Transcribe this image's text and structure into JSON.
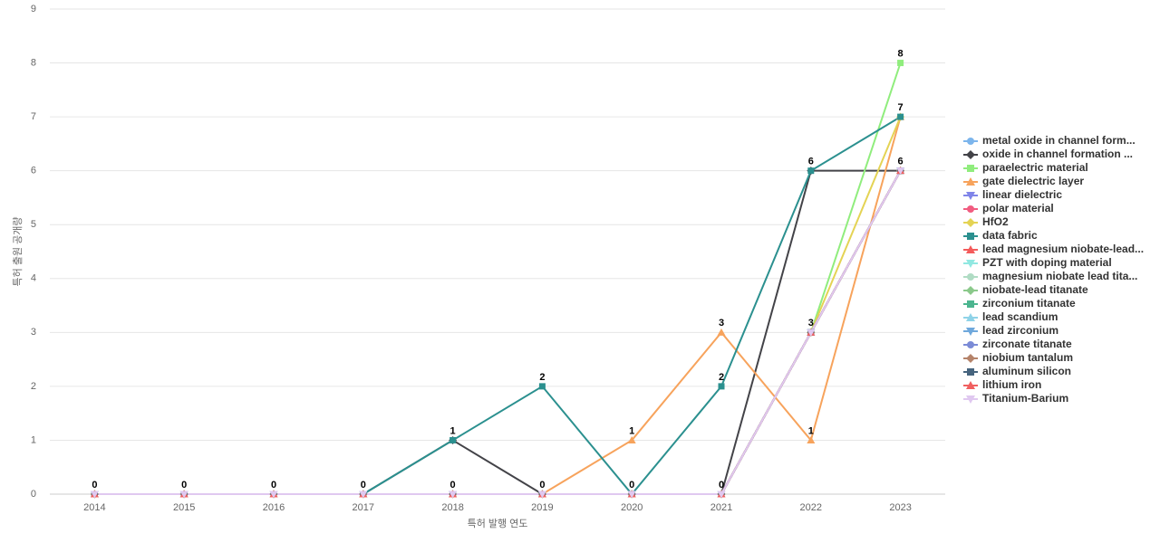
{
  "chart_data": {
    "type": "line",
    "x_label": "특허 발행 연도",
    "y_label": "특허 출원 공개량",
    "categories": [
      "2014",
      "2015",
      "2016",
      "2017",
      "2018",
      "2019",
      "2020",
      "2021",
      "2022",
      "2023"
    ],
    "ylim": [
      0,
      9
    ],
    "yticks": [
      0,
      1,
      2,
      3,
      4,
      5,
      6,
      7,
      8,
      9
    ],
    "grid": true,
    "series": [
      {
        "name": "metal oxide in channel form...",
        "color": "#7cb5ec",
        "symbol": "circle",
        "values": [
          0,
          0,
          0,
          0,
          0,
          0,
          0,
          0,
          3,
          6
        ]
      },
      {
        "name": "oxide in channel formation ...",
        "color": "#434348",
        "symbol": "diamond",
        "values": [
          0,
          0,
          0,
          0,
          1,
          0,
          0,
          0,
          6,
          6
        ]
      },
      {
        "name": "paraelectric material",
        "color": "#90ed7d",
        "symbol": "square",
        "values": [
          0,
          0,
          0,
          0,
          0,
          0,
          0,
          0,
          3,
          8
        ]
      },
      {
        "name": "gate dielectric layer",
        "color": "#f7a35c",
        "symbol": "triangle",
        "values": [
          0,
          0,
          0,
          0,
          0,
          0,
          1,
          3,
          1,
          7
        ]
      },
      {
        "name": "linear dielectric",
        "color": "#8085e9",
        "symbol": "triangle-down",
        "values": [
          0,
          0,
          0,
          0,
          0,
          0,
          0,
          0,
          3,
          6
        ]
      },
      {
        "name": "polar material",
        "color": "#f15c80",
        "symbol": "circle",
        "values": [
          0,
          0,
          0,
          0,
          0,
          0,
          0,
          0,
          3,
          6
        ]
      },
      {
        "name": "HfO2",
        "color": "#e4d354",
        "symbol": "diamond",
        "values": [
          0,
          0,
          0,
          0,
          0,
          0,
          0,
          0,
          3,
          7
        ]
      },
      {
        "name": "data fabric",
        "color": "#2b908f",
        "symbol": "square",
        "values": [
          0,
          0,
          0,
          0,
          1,
          2,
          0,
          2,
          6,
          7
        ]
      },
      {
        "name": "lead magnesium niobate-lead...",
        "color": "#f45b5b",
        "symbol": "triangle",
        "values": [
          0,
          0,
          0,
          0,
          0,
          0,
          0,
          0,
          3,
          6
        ]
      },
      {
        "name": "PZT with doping material",
        "color": "#91e8e1",
        "symbol": "triangle-down",
        "values": [
          0,
          0,
          0,
          0,
          0,
          0,
          0,
          0,
          3,
          6
        ]
      },
      {
        "name": "magnesium niobate lead tita...",
        "color": "#b0dcc4",
        "symbol": "circle",
        "values": [
          0,
          0,
          0,
          0,
          0,
          0,
          0,
          0,
          3,
          6
        ]
      },
      {
        "name": "niobate-lead titanate",
        "color": "#8bc98b",
        "symbol": "diamond",
        "values": [
          0,
          0,
          0,
          0,
          0,
          0,
          0,
          0,
          3,
          6
        ]
      },
      {
        "name": "zirconium titanate",
        "color": "#4cb58f",
        "symbol": "square",
        "values": [
          0,
          0,
          0,
          0,
          0,
          0,
          0,
          0,
          3,
          6
        ]
      },
      {
        "name": "lead scandium",
        "color": "#8fd3e8",
        "symbol": "triangle",
        "values": [
          0,
          0,
          0,
          0,
          0,
          0,
          0,
          0,
          3,
          6
        ]
      },
      {
        "name": "lead zirconium",
        "color": "#6fa8dc",
        "symbol": "triangle-down",
        "values": [
          0,
          0,
          0,
          0,
          0,
          0,
          0,
          0,
          3,
          6
        ]
      },
      {
        "name": "zirconate titanate",
        "color": "#7b8bd6",
        "symbol": "circle",
        "values": [
          0,
          0,
          0,
          0,
          0,
          0,
          0,
          0,
          3,
          6
        ]
      },
      {
        "name": "niobium tantalum",
        "color": "#b5836a",
        "symbol": "diamond",
        "values": [
          0,
          0,
          0,
          0,
          0,
          0,
          0,
          0,
          3,
          6
        ]
      },
      {
        "name": "aluminum silicon",
        "color": "#46647e",
        "symbol": "square",
        "values": [
          0,
          0,
          0,
          0,
          0,
          0,
          0,
          0,
          3,
          6
        ]
      },
      {
        "name": "lithium iron",
        "color": "#f06060",
        "symbol": "triangle",
        "values": [
          0,
          0,
          0,
          0,
          0,
          0,
          0,
          0,
          3,
          6
        ]
      },
      {
        "name": "Titanium-Barium",
        "color": "#e0c8f0",
        "symbol": "triangle-down",
        "values": [
          0,
          0,
          0,
          0,
          0,
          0,
          0,
          0,
          3,
          6
        ]
      }
    ]
  }
}
